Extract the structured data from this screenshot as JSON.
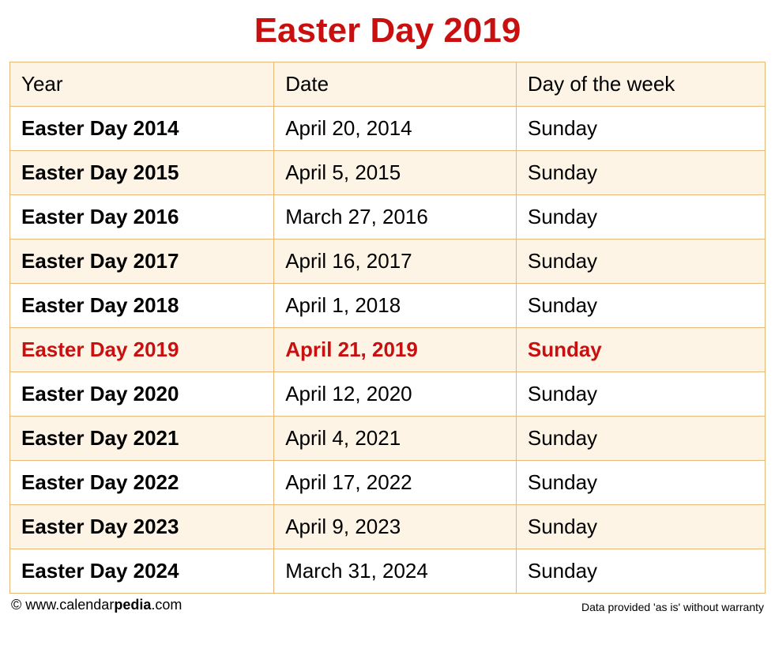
{
  "title": "Easter Day 2019",
  "title_color": "#c81010",
  "highlight_color": "#c81010",
  "border_color": "#e6b87a",
  "stripe_color": "#fdf4e6",
  "background_color": "#ffffff",
  "columns": [
    "Year",
    "Date",
    "Day of the week"
  ],
  "rows": [
    {
      "year": "Easter Day 2014",
      "date": "April 20, 2014",
      "day": "Sunday",
      "highlight": false
    },
    {
      "year": "Easter Day 2015",
      "date": "April 5, 2015",
      "day": "Sunday",
      "highlight": false
    },
    {
      "year": "Easter Day 2016",
      "date": "March 27, 2016",
      "day": "Sunday",
      "highlight": false
    },
    {
      "year": "Easter Day 2017",
      "date": "April 16, 2017",
      "day": "Sunday",
      "highlight": false
    },
    {
      "year": "Easter Day 2018",
      "date": "April 1, 2018",
      "day": "Sunday",
      "highlight": false
    },
    {
      "year": "Easter Day 2019",
      "date": "April 21, 2019",
      "day": "Sunday",
      "highlight": true
    },
    {
      "year": "Easter Day 2020",
      "date": "April 12, 2020",
      "day": "Sunday",
      "highlight": false
    },
    {
      "year": "Easter Day 2021",
      "date": "April 4, 2021",
      "day": "Sunday",
      "highlight": false
    },
    {
      "year": "Easter Day 2022",
      "date": "April 17, 2022",
      "day": "Sunday",
      "highlight": false
    },
    {
      "year": "Easter Day 2023",
      "date": "April 9, 2023",
      "day": "Sunday",
      "highlight": false
    },
    {
      "year": "Easter Day 2024",
      "date": "March 31, 2024",
      "day": "Sunday",
      "highlight": false
    }
  ],
  "footer": {
    "copyright_prefix": "© www.calendar",
    "copyright_bold": "pedia",
    "copyright_suffix": ".com",
    "disclaimer": "Data provided 'as is' without warranty"
  }
}
